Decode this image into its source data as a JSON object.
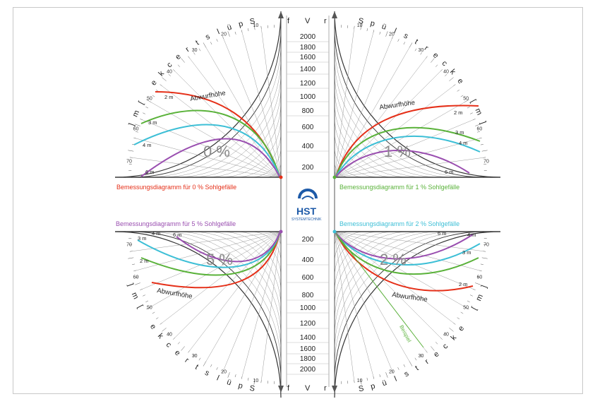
{
  "axis_letters": {
    "top": [
      "f",
      "V",
      "r"
    ],
    "bottom": [
      "f",
      "V",
      "r"
    ]
  },
  "scale_values": [
    "200",
    "400",
    "600",
    "800",
    "1000",
    "1200",
    "1400",
    "1600",
    "1800",
    "2000"
  ],
  "arc_title": "Spülstrecke [m]",
  "arc_ticks": [
    "10",
    "20",
    "30",
    "40",
    "50",
    "60",
    "70"
  ],
  "curve_labels": [
    "2 m",
    "3 m",
    "4 m",
    "6 m"
  ],
  "abwurf_label": "Abwurfhöhe",
  "beispiel_label": "Beispiel",
  "quadrants": [
    {
      "percent": "0 %",
      "caption": "Bemessungsdiagramm für 0 % Sohlgefälle",
      "color": "#e53019"
    },
    {
      "percent": "1 %",
      "caption": "Bemessungsdiagramm für 1 % Sohlgefälle",
      "color": "#5ab23a"
    },
    {
      "percent": "5 %",
      "caption": "Bemessungsdiagramm für 5 % Sohlgefälle",
      "color": "#9a4fb0"
    },
    {
      "percent": "2 %",
      "caption": "Bemessungsdiagramm für 2 % Sohlgefälle",
      "color": "#3dbfd6"
    }
  ],
  "curve_colors": {
    "2m": "#e53019",
    "3m": "#5ab23a",
    "4m": "#3dbfd6",
    "6m": "#9a4fb0"
  },
  "logo": {
    "name": "HST",
    "tagline": "SYSTEMTECHNIK"
  }
}
